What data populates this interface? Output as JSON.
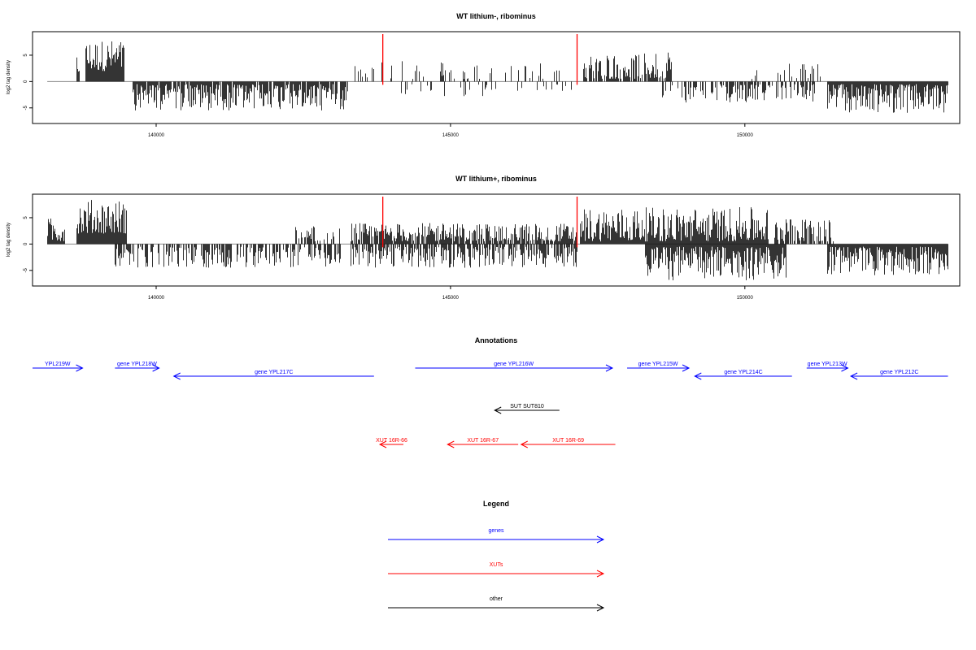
{
  "colors": {
    "genes": "#0000ff",
    "xuts": "#ff0000",
    "other": "#000000",
    "marker": "#ff0000",
    "bar": "#000000",
    "baseline": "#888888"
  },
  "chart_data": [
    {
      "type": "bar",
      "title": "WT lithium-, ribominus",
      "ylabel": "log2 tag density",
      "xlim": [
        137900,
        153650
      ],
      "ylim": [
        -7.5,
        9
      ],
      "x_ticks": [
        140000,
        145000,
        150000
      ],
      "y_ticks": [
        5,
        0,
        -5
      ],
      "markers_x": [
        143850,
        147150
      ],
      "segments": [
        {
          "x": [
            138150,
            138250
          ],
          "sign": 1,
          "min": 0.5,
          "max": 3.0,
          "density": 0.15
        },
        {
          "x": [
            138650,
            138700
          ],
          "sign": 1,
          "min": 1.5,
          "max": 5.5,
          "density": 1.0
        },
        {
          "x": [
            138800,
            139450
          ],
          "sign": 1,
          "min": 2.0,
          "max": 8.0,
          "density": 1.0
        },
        {
          "x": [
            139600,
            143250
          ],
          "sign": -1,
          "min": 0.5,
          "max": 5.5,
          "density": 0.9
        },
        {
          "x": [
            143300,
            143600
          ],
          "sign": 1,
          "min": 0.5,
          "max": 3.0,
          "density": 0.4
        },
        {
          "x": [
            143650,
            147000
          ],
          "sign": 1,
          "min": 0.5,
          "max": 4.0,
          "density": 0.15
        },
        {
          "x": [
            144100,
            147100
          ],
          "sign": -1,
          "min": 0.5,
          "max": 3.0,
          "density": 0.12
        },
        {
          "x": [
            147250,
            148750
          ],
          "sign": 1,
          "min": 0.5,
          "max": 5.5,
          "density": 0.8
        },
        {
          "x": [
            148600,
            151200
          ],
          "sign": -1,
          "min": 0.5,
          "max": 4.0,
          "density": 0.5
        },
        {
          "x": [
            150100,
            150200
          ],
          "sign": 1,
          "min": 0.5,
          "max": 2.5,
          "density": 0.3
        },
        {
          "x": [
            150550,
            151300
          ],
          "sign": 1,
          "min": 0.5,
          "max": 3.5,
          "density": 0.3
        },
        {
          "x": [
            151400,
            153450
          ],
          "sign": -1,
          "min": 0.5,
          "max": 6.0,
          "density": 1.0
        }
      ]
    },
    {
      "type": "bar",
      "title": "WT lithium+, ribominus",
      "ylabel": "log2 tag density",
      "xlim": [
        137900,
        153650
      ],
      "ylim": [
        -7.5,
        9
      ],
      "x_ticks": [
        140000,
        145000,
        150000
      ],
      "y_ticks": [
        5,
        0,
        -5
      ],
      "markers_x": [
        143850,
        147150
      ],
      "segments": [
        {
          "x": [
            138150,
            138450
          ],
          "sign": 1,
          "min": 0.5,
          "max": 5.0,
          "density": 1.0
        },
        {
          "x": [
            138650,
            139500
          ],
          "sign": 1,
          "min": 2.0,
          "max": 8.5,
          "density": 1.0
        },
        {
          "x": [
            139300,
            143150
          ],
          "sign": -1,
          "min": 0.5,
          "max": 4.5,
          "density": 0.6
        },
        {
          "x": [
            142350,
            143150
          ],
          "sign": 1,
          "min": 0.5,
          "max": 3.5,
          "density": 0.5
        },
        {
          "x": [
            143300,
            147150
          ],
          "sign": 1,
          "min": 0.5,
          "max": 4.0,
          "density": 0.8
        },
        {
          "x": [
            143300,
            147150
          ],
          "sign": -1,
          "min": 0.5,
          "max": 4.5,
          "density": 0.7
        },
        {
          "x": [
            147200,
            150400
          ],
          "sign": 1,
          "min": 0.5,
          "max": 7.0,
          "density": 1.0
        },
        {
          "x": [
            148300,
            150700
          ],
          "sign": -1,
          "min": 0.5,
          "max": 7.0,
          "density": 1.0
        },
        {
          "x": [
            150500,
            151500
          ],
          "sign": 1,
          "min": 0.5,
          "max": 5.0,
          "density": 0.7
        },
        {
          "x": [
            151400,
            153450
          ],
          "sign": -1,
          "min": 0.5,
          "max": 6.0,
          "density": 1.0
        }
      ]
    }
  ],
  "annotations": {
    "title": "Annotations",
    "features": [
      {
        "label": "YPL219W",
        "start": 137900,
        "end": 138750,
        "strand": "+",
        "row": 0,
        "kind": "genes"
      },
      {
        "label": "gene YPL218W",
        "start": 139300,
        "end": 140050,
        "strand": "+",
        "row": 0,
        "kind": "genes"
      },
      {
        "label": "gene YPL217C",
        "start": 140300,
        "end": 143700,
        "strand": "-",
        "row": 1,
        "kind": "genes"
      },
      {
        "label": "gene YPL216W",
        "start": 144400,
        "end": 147750,
        "strand": "+",
        "row": 0,
        "kind": "genes"
      },
      {
        "label": "gene YPL215W",
        "start": 148000,
        "end": 149050,
        "strand": "+",
        "row": 0,
        "kind": "genes"
      },
      {
        "label": "gene YPL214C",
        "start": 149150,
        "end": 150800,
        "strand": "-",
        "row": 1,
        "kind": "genes"
      },
      {
        "label": "gene YPL213W",
        "start": 151050,
        "end": 151750,
        "strand": "+",
        "row": 0,
        "kind": "genes"
      },
      {
        "label": "gene YPL212C",
        "start": 151800,
        "end": 153450,
        "strand": "-",
        "row": 1,
        "kind": "genes"
      },
      {
        "label": "SUT SUT810",
        "start": 145750,
        "end": 146850,
        "strand": "-",
        "row": 2,
        "kind": "other"
      },
      {
        "label": "XUT 16R-66",
        "start": 143800,
        "end": 144200,
        "strand": "-",
        "row": 3,
        "kind": "xuts"
      },
      {
        "label": "XUT 16R-67",
        "start": 144950,
        "end": 146150,
        "strand": "-",
        "row": 3,
        "kind": "xuts"
      },
      {
        "label": "XUT 16R-69",
        "start": 146200,
        "end": 147800,
        "strand": "-",
        "row": 3,
        "kind": "xuts"
      }
    ]
  },
  "legend": {
    "title": "Legend",
    "entries": [
      {
        "label": "genes",
        "kind": "genes"
      },
      {
        "label": "XUTs",
        "kind": "xuts"
      },
      {
        "label": "other",
        "kind": "other"
      }
    ]
  }
}
